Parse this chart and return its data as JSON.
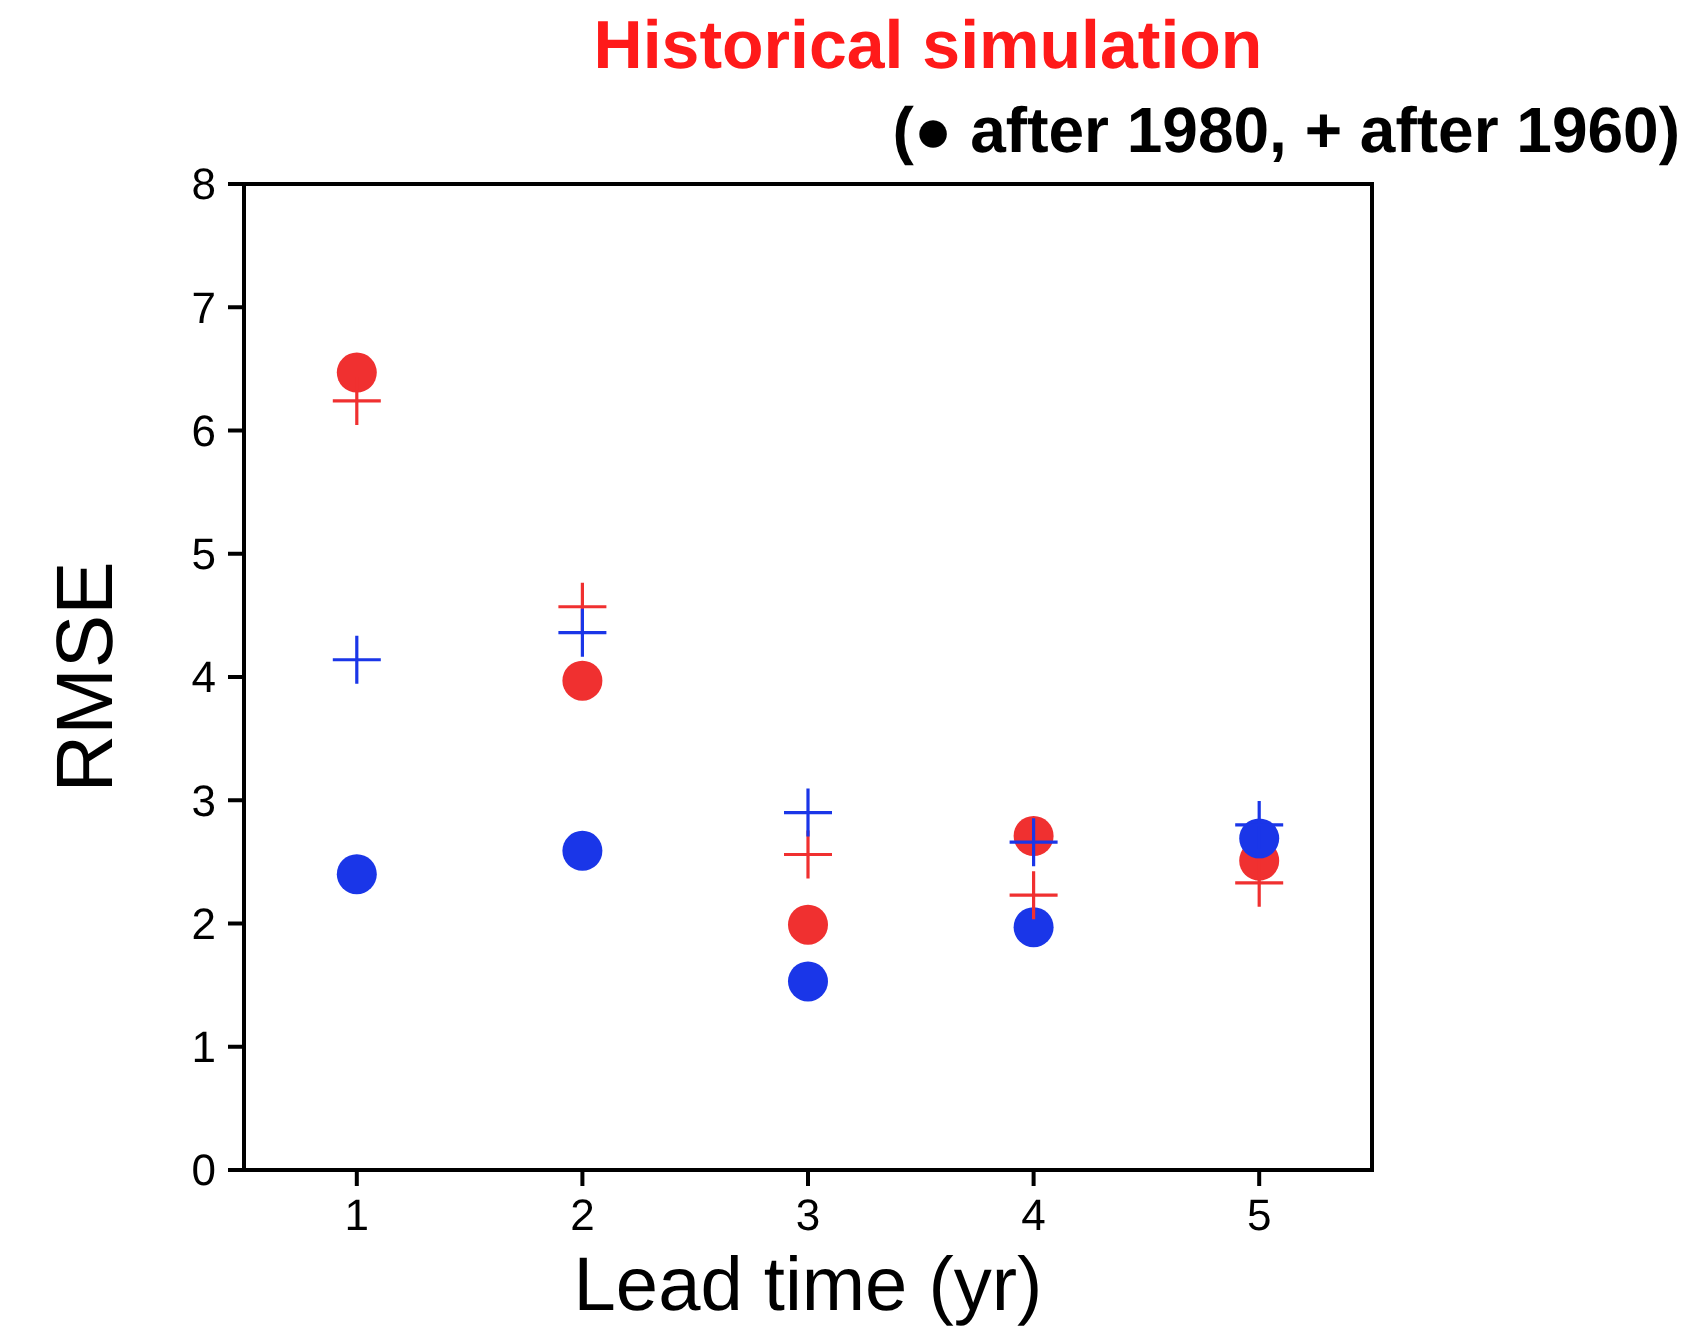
{
  "chart_data": {
    "type": "scatter",
    "title": "Historical simulation",
    "subtitle": "(● after 1980, + after 1960)",
    "xlabel": "Lead time (yr)",
    "ylabel": "RMSE",
    "x": [
      1,
      2,
      3,
      4,
      5
    ],
    "xlim": [
      0.5,
      5.5
    ],
    "xticks": [
      1,
      2,
      3,
      4,
      5
    ],
    "ylim": [
      0,
      8
    ],
    "yticks": [
      0,
      1,
      2,
      3,
      4,
      5,
      6,
      7,
      8
    ],
    "grid": false,
    "series": [
      {
        "color": "#f03030",
        "marker": "circle",
        "values": [
          6.47,
          3.97,
          1.99,
          2.71,
          2.51
        ]
      },
      {
        "color": "#1a36e8",
        "marker": "circle",
        "values": [
          2.4,
          2.59,
          1.53,
          1.97,
          2.69
        ]
      },
      {
        "color": "#f03030",
        "marker": "cross",
        "values": [
          6.24,
          4.57,
          2.56,
          2.23,
          2.33
        ]
      },
      {
        "color": "#1a36e8",
        "marker": "cross",
        "values": [
          4.14,
          4.36,
          2.9,
          2.66,
          2.8
        ]
      }
    ]
  }
}
